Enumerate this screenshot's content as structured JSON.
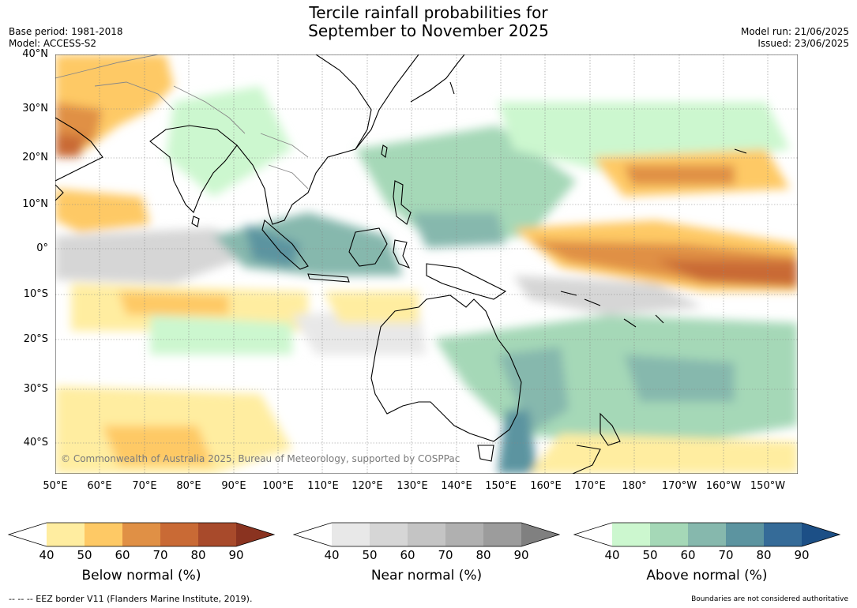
{
  "title_line1": "Tercile rainfall probabilities for",
  "title_line2": "September to November 2025",
  "base_period": "Base period: 1981-2018",
  "model": "Model: ACCESS-S2",
  "model_run": "Model run: 21/06/2025",
  "issued": "Issued: 23/06/2025",
  "lat_labels": [
    "40°N",
    "30°N",
    "20°N",
    "10°N",
    "0°",
    "10°S",
    "20°S",
    "30°S",
    "40°S"
  ],
  "lon_labels": [
    "50°E",
    "60°E",
    "70°E",
    "80°E",
    "90°E",
    "100°E",
    "110°E",
    "120°E",
    "130°E",
    "140°E",
    "150°E",
    "160°E",
    "170°E",
    "180°",
    "170°W",
    "160°W",
    "150°W"
  ],
  "copyright": "© Commonwealth of Australia 2025, Bureau of Meteorology, supported by COSPPac",
  "colorbars": [
    {
      "label": "Below normal (%)",
      "ticks": [
        "40",
        "50",
        "60",
        "70",
        "80",
        "90"
      ],
      "colors": [
        "#ffffff",
        "#ffeda0",
        "#fec965",
        "#e09045",
        "#c96a35",
        "#a84a2b",
        "#8a3320"
      ]
    },
    {
      "label": "Near normal (%)",
      "ticks": [
        "40",
        "50",
        "60",
        "70",
        "80",
        "90"
      ],
      "colors": [
        "#ffffff",
        "#e8e8e8",
        "#d6d6d6",
        "#c4c4c4",
        "#b0b0b0",
        "#9c9c9c",
        "#808080"
      ]
    },
    {
      "label": "Above normal (%)",
      "ticks": [
        "40",
        "50",
        "60",
        "70",
        "80",
        "90"
      ],
      "colors": [
        "#ffffff",
        "#ccf7cf",
        "#a5d8b7",
        "#86b8ad",
        "#5c94a0",
        "#356b98",
        "#1c4f86"
      ]
    }
  ],
  "eez_note": "--  --  -- EEZ border V11 (Flanders Marine Institute, 2019).",
  "boundaries_note": "Boundaries are not considered authoritative"
}
